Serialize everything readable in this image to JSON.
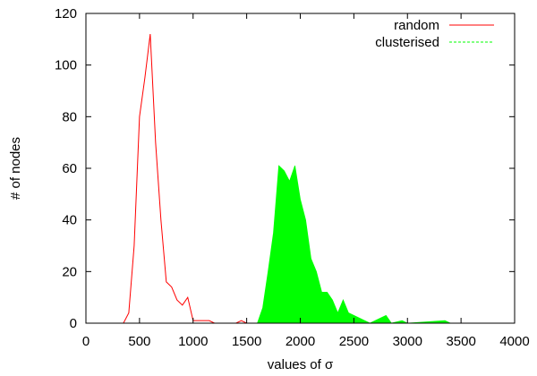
{
  "chart_data": {
    "type": "line",
    "title": "",
    "xlabel": "values of σ",
    "ylabel": "# of nodes",
    "xlim": [
      0,
      4000
    ],
    "ylim": [
      0,
      120
    ],
    "x_ticks": [
      0,
      500,
      1000,
      1500,
      2000,
      2500,
      3000,
      3500,
      4000
    ],
    "y_ticks": [
      0,
      20,
      40,
      60,
      80,
      100,
      120
    ],
    "grid": false,
    "legend_position": "top-right",
    "series": [
      {
        "name": "random",
        "style": "line",
        "color": "#ff0000",
        "points": [
          [
            0,
            0
          ],
          [
            350,
            0
          ],
          [
            400,
            4
          ],
          [
            450,
            30
          ],
          [
            500,
            80
          ],
          [
            550,
            95
          ],
          [
            600,
            112
          ],
          [
            650,
            70
          ],
          [
            700,
            40
          ],
          [
            750,
            16
          ],
          [
            800,
            14
          ],
          [
            850,
            9
          ],
          [
            900,
            7
          ],
          [
            950,
            10
          ],
          [
            1000,
            1
          ],
          [
            1050,
            1
          ],
          [
            1100,
            1
          ],
          [
            1150,
            1
          ],
          [
            1200,
            0
          ],
          [
            1400,
            0
          ],
          [
            1450,
            1
          ],
          [
            1500,
            0
          ],
          [
            1550,
            0
          ],
          [
            4000,
            0
          ]
        ]
      },
      {
        "name": "clusterised",
        "style": "filled",
        "color": "#00ff00",
        "points": [
          [
            0,
            0
          ],
          [
            1600,
            0
          ],
          [
            1650,
            6
          ],
          [
            1700,
            20
          ],
          [
            1750,
            35
          ],
          [
            1800,
            61
          ],
          [
            1850,
            59
          ],
          [
            1900,
            55
          ],
          [
            1950,
            61
          ],
          [
            2000,
            48
          ],
          [
            2050,
            40
          ],
          [
            2100,
            25
          ],
          [
            2150,
            20
          ],
          [
            2200,
            12
          ],
          [
            2250,
            12
          ],
          [
            2300,
            9
          ],
          [
            2350,
            4
          ],
          [
            2400,
            9
          ],
          [
            2450,
            4
          ],
          [
            2500,
            3
          ],
          [
            2550,
            2
          ],
          [
            2600,
            1
          ],
          [
            2650,
            0
          ],
          [
            2750,
            2
          ],
          [
            2800,
            3
          ],
          [
            2850,
            0
          ],
          [
            2950,
            1
          ],
          [
            3000,
            0
          ],
          [
            3350,
            1
          ],
          [
            3400,
            0
          ],
          [
            4000,
            0
          ]
        ]
      }
    ]
  }
}
